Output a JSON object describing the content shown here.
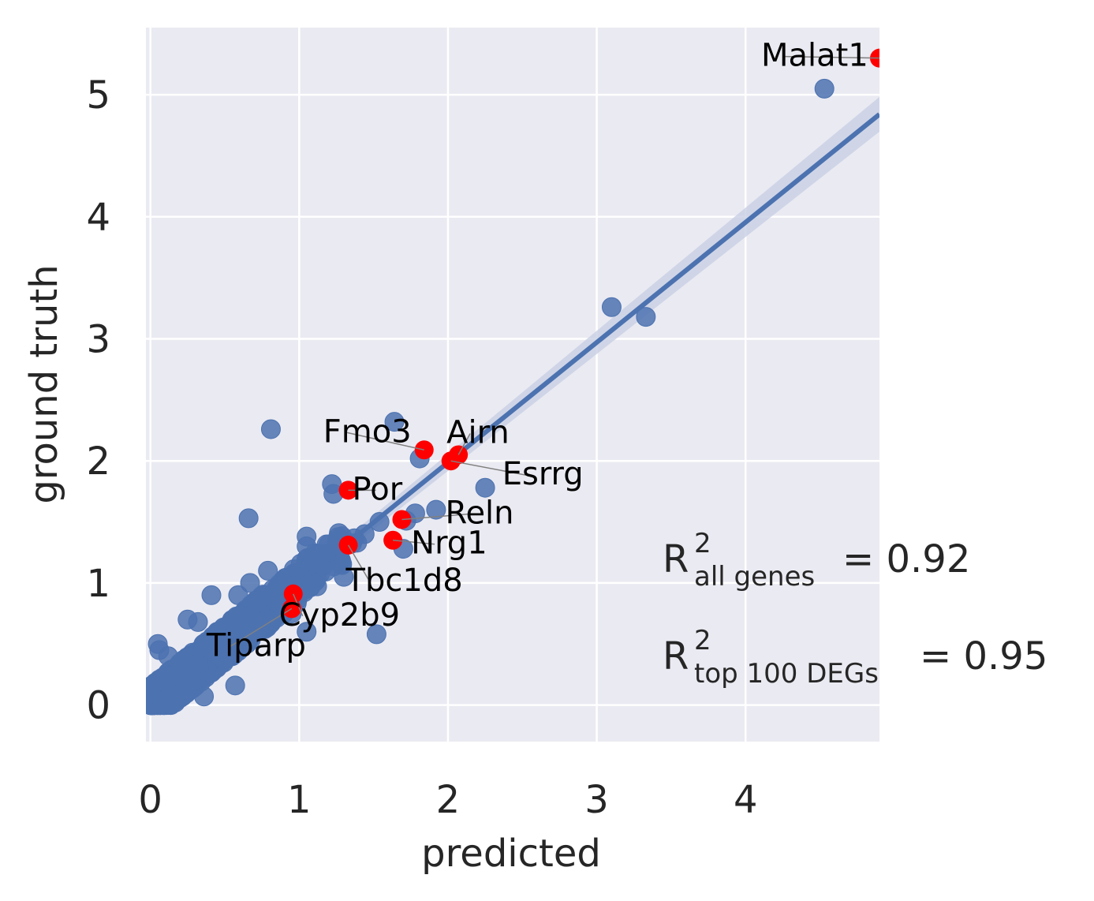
{
  "colors": {
    "plot_bg": "#eaeaf2",
    "grid": "#ffffff",
    "points": "#4c72b0",
    "highlight": "#ff0000",
    "regression": "#4c72b0",
    "ci_band": "#c8d0e4",
    "arrow": "#808080"
  },
  "chart_data": {
    "type": "scatter",
    "xlabel": "predicted",
    "ylabel": "ground truth",
    "xlim": [
      -0.03,
      4.9
    ],
    "ylim": [
      -0.3,
      5.55
    ],
    "xticks": [
      "0",
      "1",
      "2",
      "3",
      "4"
    ],
    "yticks": [
      "0",
      "1",
      "2",
      "3",
      "4",
      "5"
    ],
    "grid": true,
    "regression_line": {
      "x": [
        0,
        4.9
      ],
      "y": [
        0.02,
        4.84
      ]
    },
    "outlier_points": [
      [
        4.53,
        5.05
      ],
      [
        3.1,
        3.26
      ],
      [
        3.33,
        3.18
      ],
      [
        0.81,
        2.26
      ],
      [
        1.64,
        2.32
      ],
      [
        1.22,
        1.81
      ],
      [
        1.23,
        1.73
      ],
      [
        2.25,
        1.78
      ],
      [
        0.66,
        1.53
      ],
      [
        1.81,
        2.02
      ],
      [
        1.92,
        1.6
      ],
      [
        1.78,
        1.57
      ],
      [
        1.72,
        1.51
      ],
      [
        1.54,
        1.5
      ],
      [
        1.44,
        1.4
      ],
      [
        1.39,
        1.33
      ],
      [
        1.05,
        1.38
      ],
      [
        1.05,
        1.3
      ],
      [
        1.25,
        1.3
      ],
      [
        1.7,
        1.28
      ],
      [
        1.3,
        1.05
      ],
      [
        1.52,
        0.58
      ],
      [
        1.05,
        0.6
      ],
      [
        0.8,
        0.9
      ],
      [
        0.79,
        1.1
      ],
      [
        0.67,
        1.0
      ],
      [
        0.59,
        0.9
      ],
      [
        0.41,
        0.9
      ],
      [
        0.32,
        0.68
      ],
      [
        0.25,
        0.7
      ],
      [
        0.05,
        0.5
      ],
      [
        0.12,
        0.4
      ],
      [
        0.57,
        0.16
      ],
      [
        0.36,
        0.07
      ],
      [
        0.06,
        0.45
      ],
      [
        1.15,
        1.15
      ],
      [
        0.9,
        1.0
      ],
      [
        0.95,
        0.75
      ],
      [
        0.45,
        0.6
      ],
      [
        0.7,
        0.6
      ]
    ],
    "highlighted_genes": [
      {
        "name": "Malat1",
        "x": 4.9,
        "y": 5.3
      },
      {
        "name": "Fmo3",
        "x": 1.84,
        "y": 2.09
      },
      {
        "name": "Airn",
        "x": 2.07,
        "y": 2.05
      },
      {
        "name": "Esrrg",
        "x": 2.02,
        "y": 2.0
      },
      {
        "name": "Por",
        "x": 1.33,
        "y": 1.76
      },
      {
        "name": "Reln",
        "x": 1.69,
        "y": 1.52
      },
      {
        "name": "Nrg1",
        "x": 1.63,
        "y": 1.35
      },
      {
        "name": "Tbc1d8",
        "x": 1.33,
        "y": 1.31
      },
      {
        "name": "Cyp2b9",
        "x": 0.96,
        "y": 0.91
      },
      {
        "name": "Tiparp",
        "x": 0.95,
        "y": 0.79
      }
    ],
    "annotations": {
      "r2_all": {
        "symbol": "R",
        "sup": "2",
        "sub": "all genes",
        "value": "= 0.92"
      },
      "r2_top": {
        "symbol": "R",
        "sup": "2",
        "sub": "top 100 DEGs",
        "value": "= 0.95"
      }
    }
  }
}
